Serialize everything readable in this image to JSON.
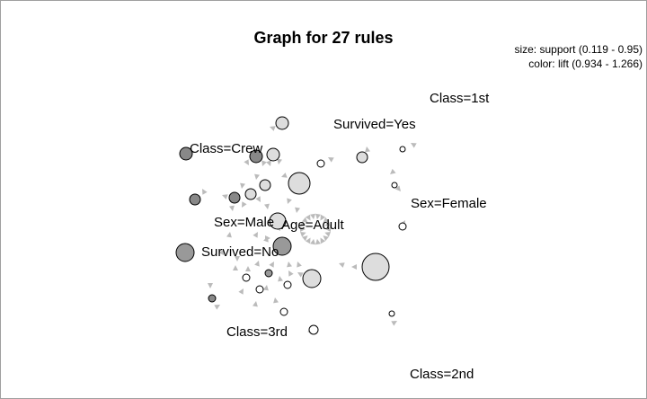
{
  "graph": {
    "title": "Graph for 27 rules",
    "legend_size": "size: support (0.119 - 0.95)",
    "legend_color": "color: lift (0.934 - 1.266)",
    "items": [
      "Class=1st",
      "Survived=Yes",
      "Class=Crew",
      "Sex=Female",
      "Sex=Male",
      "Age=Adult",
      "Survived=No",
      "Class=3rd",
      "Class=2nd"
    ],
    "colors": {
      "fill_light": "#dddddd",
      "fill_mid": "#bbbbbb",
      "fill_dark": "#999999",
      "fill_darker": "#888888",
      "fill_white": "#ffffff",
      "arrow": "#bbbbbb",
      "stroke": "#000000"
    }
  }
}
